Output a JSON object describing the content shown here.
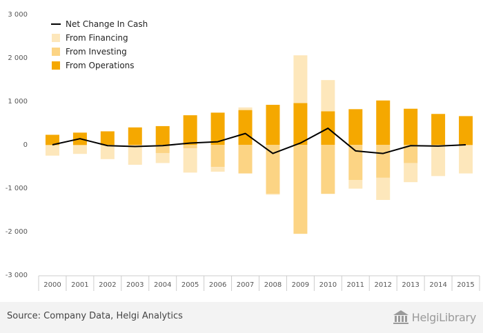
{
  "chart_data": {
    "type": "bar",
    "categories": [
      "2000",
      "2001",
      "2002",
      "2003",
      "2004",
      "2005",
      "2006",
      "2007",
      "2008",
      "2009",
      "2010",
      "2011",
      "2012",
      "2013",
      "2014",
      "2015"
    ],
    "series": [
      {
        "name": "From Operations",
        "kind": "bar",
        "color": "#f5a800",
        "values": [
          230,
          280,
          310,
          400,
          430,
          680,
          740,
          800,
          920,
          960,
          770,
          820,
          1020,
          830,
          710,
          660
        ]
      },
      {
        "name": "From Investing",
        "kind": "bar",
        "color": "#fcd484",
        "values": [
          -20,
          -20,
          -20,
          -20,
          -190,
          -80,
          -510,
          -660,
          -1130,
          -2050,
          -1130,
          -810,
          -760,
          -420,
          -20,
          -20
        ]
      },
      {
        "name": "From Financing",
        "kind": "bar",
        "color": "#fde7bb",
        "values": [
          -230,
          -190,
          -310,
          -440,
          -230,
          -560,
          -110,
          60,
          -20,
          1100,
          720,
          -200,
          -510,
          -440,
          -700,
          -640
        ]
      },
      {
        "name": "Net Change In Cash",
        "kind": "line",
        "color": "#000000",
        "values": [
          0,
          140,
          -20,
          -40,
          -20,
          40,
          70,
          260,
          -200,
          40,
          380,
          -140,
          -200,
          -20,
          -30,
          0
        ]
      }
    ],
    "xlabel": "",
    "ylabel": "",
    "ylim": [
      -3000,
      3000
    ],
    "yticks": [
      3000,
      2000,
      1000,
      0,
      -1000,
      -2000,
      -3000
    ],
    "ytick_labels": [
      "3 000",
      "2 000",
      "1 000",
      "0",
      "-1 000",
      "-2 000",
      "-3 000"
    ],
    "grid": false,
    "legend_position": "top-left",
    "legend_order": [
      "Net Change In Cash",
      "From Financing",
      "From Investing",
      "From Operations"
    ]
  },
  "footer": {
    "source": "Source: Company Data, Helgi Analytics",
    "brand": "HelgiLibrary"
  }
}
